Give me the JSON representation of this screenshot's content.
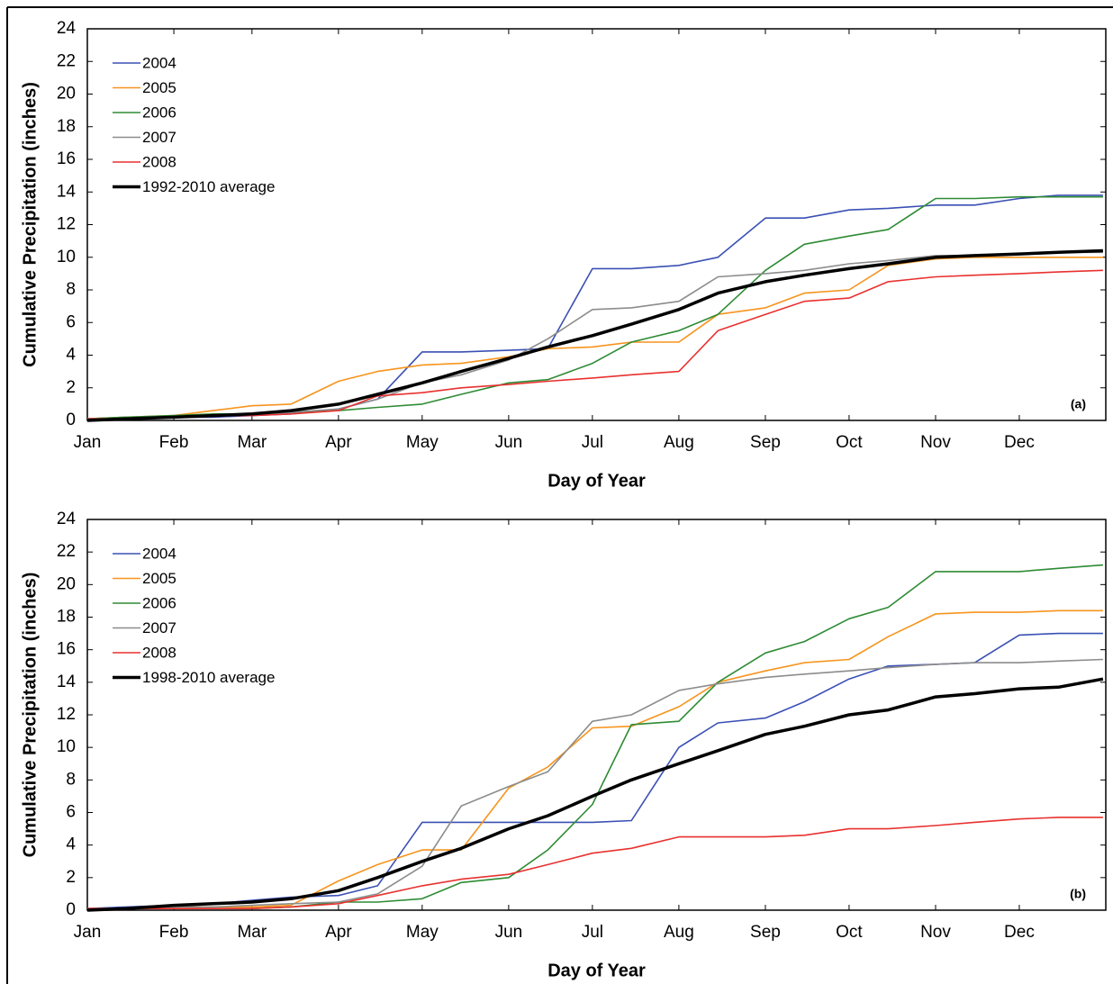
{
  "chart_data": [
    {
      "type": "line",
      "xlabel": "Day of Year",
      "ylabel": "Cumulative Precipitation (inches)",
      "annotation": "(a)",
      "x": [
        1,
        15,
        32,
        46,
        60,
        74,
        91,
        105,
        121,
        135,
        152,
        166,
        182,
        196,
        213,
        227,
        244,
        258,
        274,
        288,
        305,
        319,
        335,
        349,
        365
      ],
      "xlim": [
        1,
        366
      ],
      "xticks": [
        {
          "value": 1,
          "label": "Jan"
        },
        {
          "value": 32,
          "label": "Feb"
        },
        {
          "value": 60,
          "label": "Mar"
        },
        {
          "value": 91,
          "label": "Apr"
        },
        {
          "value": 121,
          "label": "May"
        },
        {
          "value": 152,
          "label": "Jun"
        },
        {
          "value": 182,
          "label": "Jul"
        },
        {
          "value": 213,
          "label": "Aug"
        },
        {
          "value": 244,
          "label": "Sep"
        },
        {
          "value": 274,
          "label": "Oct"
        },
        {
          "value": 305,
          "label": "Nov"
        },
        {
          "value": 335,
          "label": "Dec"
        }
      ],
      "ylim": [
        0,
        24
      ],
      "yticks": [
        0,
        2,
        4,
        6,
        8,
        10,
        12,
        14,
        16,
        18,
        20,
        22,
        24
      ],
      "legend": "upper left",
      "grid": false,
      "series": [
        {
          "name": "2004",
          "color": "#3a50b4",
          "width": 1.6,
          "values": [
            0.1,
            0.2,
            0.2,
            0.2,
            0.3,
            0.4,
            0.7,
            1.3,
            4.2,
            4.2,
            4.3,
            4.4,
            9.3,
            9.3,
            9.5,
            10.0,
            12.4,
            12.4,
            12.9,
            13.0,
            13.2,
            13.2,
            13.6,
            13.8,
            13.8
          ]
        },
        {
          "name": "2005",
          "color": "#f7941d",
          "width": 1.6,
          "values": [
            0.1,
            0.2,
            0.3,
            0.6,
            0.9,
            1.0,
            2.4,
            3.0,
            3.4,
            3.5,
            3.9,
            4.4,
            4.5,
            4.8,
            4.8,
            6.5,
            6.9,
            7.8,
            8.0,
            9.5,
            9.9,
            10.0,
            10.0,
            10.0,
            10.0
          ]
        },
        {
          "name": "2006",
          "color": "#2e8b34",
          "width": 1.6,
          "values": [
            0.1,
            0.2,
            0.3,
            0.4,
            0.4,
            0.5,
            0.6,
            0.8,
            1.0,
            1.6,
            2.3,
            2.5,
            3.5,
            4.8,
            5.5,
            6.5,
            9.2,
            10.8,
            11.3,
            11.7,
            13.6,
            13.6,
            13.7,
            13.7,
            13.7
          ]
        },
        {
          "name": "2007",
          "color": "#8c8c8c",
          "width": 1.6,
          "values": [
            0.1,
            0.1,
            0.2,
            0.3,
            0.4,
            0.5,
            0.7,
            1.3,
            2.3,
            2.8,
            3.7,
            5.0,
            6.8,
            6.9,
            7.3,
            8.8,
            9.0,
            9.2,
            9.6,
            9.8,
            10.1,
            10.1,
            10.2,
            10.3,
            10.3
          ]
        },
        {
          "name": "2008",
          "color": "#e8312f",
          "width": 1.6,
          "values": [
            0.1,
            0.1,
            0.2,
            0.3,
            0.3,
            0.4,
            0.6,
            1.5,
            1.7,
            2.0,
            2.2,
            2.4,
            2.6,
            2.8,
            3.0,
            5.5,
            6.5,
            7.3,
            7.5,
            8.5,
            8.8,
            8.9,
            9.0,
            9.1,
            9.2
          ]
        },
        {
          "name": "1992-2010 average",
          "color": "#000000",
          "width": 3.5,
          "values": [
            0,
            0.1,
            0.2,
            0.3,
            0.4,
            0.6,
            1.0,
            1.6,
            2.3,
            3.0,
            3.8,
            4.5,
            5.2,
            5.9,
            6.8,
            7.8,
            8.5,
            8.9,
            9.3,
            9.6,
            10.0,
            10.1,
            10.2,
            10.3,
            10.4
          ]
        }
      ]
    },
    {
      "type": "line",
      "xlabel": "Day of Year",
      "ylabel": "Cumulative Precipitation (inches)",
      "annotation": "(b)",
      "x": [
        1,
        15,
        32,
        46,
        60,
        74,
        91,
        105,
        121,
        135,
        152,
        166,
        182,
        196,
        213,
        227,
        244,
        258,
        274,
        288,
        305,
        319,
        335,
        349,
        365
      ],
      "xlim": [
        1,
        366
      ],
      "xticks": [
        {
          "value": 1,
          "label": "Jan"
        },
        {
          "value": 32,
          "label": "Feb"
        },
        {
          "value": 60,
          "label": "Mar"
        },
        {
          "value": 91,
          "label": "Apr"
        },
        {
          "value": 121,
          "label": "May"
        },
        {
          "value": 152,
          "label": "Jun"
        },
        {
          "value": 182,
          "label": "Jul"
        },
        {
          "value": 213,
          "label": "Aug"
        },
        {
          "value": 244,
          "label": "Sep"
        },
        {
          "value": 274,
          "label": "Oct"
        },
        {
          "value": 305,
          "label": "Nov"
        },
        {
          "value": 335,
          "label": "Dec"
        }
      ],
      "ylim": [
        0,
        24
      ],
      "yticks": [
        0,
        2,
        4,
        6,
        8,
        10,
        12,
        14,
        16,
        18,
        20,
        22,
        24
      ],
      "legend": "upper left",
      "grid": false,
      "series": [
        {
          "name": "2004",
          "color": "#3a50b4",
          "width": 1.6,
          "values": [
            0.1,
            0.2,
            0.3,
            0.4,
            0.6,
            0.8,
            0.9,
            1.5,
            5.4,
            5.4,
            5.4,
            5.4,
            5.4,
            5.5,
            10.0,
            11.5,
            11.8,
            12.8,
            14.2,
            15.0,
            15.1,
            15.2,
            16.9,
            17.0,
            17.0
          ]
        },
        {
          "name": "2005",
          "color": "#f7941d",
          "width": 1.6,
          "values": [
            0.1,
            0.1,
            0.2,
            0.2,
            0.2,
            0.3,
            1.8,
            2.8,
            3.7,
            3.7,
            7.5,
            8.8,
            11.2,
            11.3,
            12.5,
            14.0,
            14.7,
            15.2,
            15.4,
            16.8,
            18.2,
            18.3,
            18.3,
            18.4,
            18.4
          ]
        },
        {
          "name": "2006",
          "color": "#2e8b34",
          "width": 1.6,
          "values": [
            0,
            0.1,
            0.1,
            0.1,
            0.1,
            0.2,
            0.5,
            0.5,
            0.7,
            1.7,
            2.0,
            3.7,
            6.5,
            11.4,
            11.6,
            14.0,
            15.8,
            16.5,
            17.9,
            18.6,
            20.8,
            20.8,
            20.8,
            21.0,
            21.2
          ]
        },
        {
          "name": "2007",
          "color": "#8c8c8c",
          "width": 1.6,
          "values": [
            0.1,
            0.1,
            0.2,
            0.2,
            0.3,
            0.4,
            0.5,
            1.0,
            2.7,
            6.4,
            7.6,
            8.5,
            11.6,
            12.0,
            13.5,
            13.9,
            14.3,
            14.5,
            14.7,
            14.9,
            15.1,
            15.2,
            15.2,
            15.3,
            15.4
          ]
        },
        {
          "name": "2008",
          "color": "#e8312f",
          "width": 1.6,
          "values": [
            0.1,
            0.1,
            0.1,
            0.1,
            0.1,
            0.2,
            0.4,
            0.9,
            1.5,
            1.9,
            2.2,
            2.8,
            3.5,
            3.8,
            4.5,
            4.5,
            4.5,
            4.6,
            5.0,
            5.0,
            5.2,
            5.4,
            5.6,
            5.7,
            5.7
          ]
        },
        {
          "name": "1998-2010 average",
          "color": "#000000",
          "width": 3.5,
          "values": [
            0,
            0.1,
            0.3,
            0.4,
            0.5,
            0.7,
            1.2,
            2.0,
            3.0,
            3.8,
            5.0,
            5.8,
            7.0,
            8.0,
            9.0,
            9.8,
            10.8,
            11.3,
            12.0,
            12.3,
            13.1,
            13.3,
            13.6,
            13.7,
            14.2
          ]
        }
      ]
    }
  ]
}
